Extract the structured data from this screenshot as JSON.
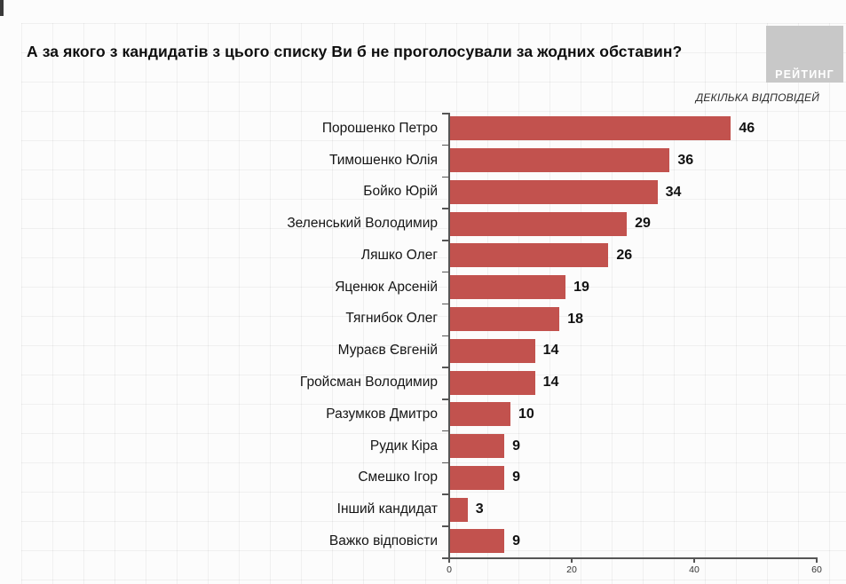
{
  "header": {
    "title": "А за якого з кандидатів з цього списку Ви б не проголосували за жодних обставин?",
    "note": "ДЕКІЛЬКА ВІДПОВІДЕЙ",
    "logo_text": "РЕЙТИНГ"
  },
  "colors": {
    "bar": "#c2524e",
    "axis": "#555555",
    "logo_bg": "#c8c8c8",
    "value_label": "#111111"
  },
  "chart_data": {
    "type": "bar",
    "orientation": "horizontal",
    "title": "А за якого з кандидатів з цього списку Ви б не проголосували за жодних обставин?",
    "subtitle": "ДЕКІЛЬКА ВІДПОВІДЕЙ",
    "categories": [
      "Порошенко Петро",
      "Тимошенко Юлія",
      "Бойко Юрій",
      "Зеленський Володимир",
      "Ляшко Олег",
      "Яценюк Арсеній",
      "Тягнибок Олег",
      "Мураєв Євгеній",
      "Гройсман Володимир",
      "Разумков Дмитро",
      "Рудик Кіра",
      "Смешко Ігор",
      "Інший кандидат",
      "Важко відповісти"
    ],
    "values": [
      46,
      36,
      34,
      29,
      26,
      19,
      18,
      14,
      14,
      10,
      9,
      9,
      3,
      9
    ],
    "xlim": [
      0,
      60
    ],
    "x_ticks": [
      0,
      20,
      40,
      60
    ],
    "value_labels": true,
    "legend": null,
    "grid": false,
    "bar_color": "#c2524e"
  }
}
